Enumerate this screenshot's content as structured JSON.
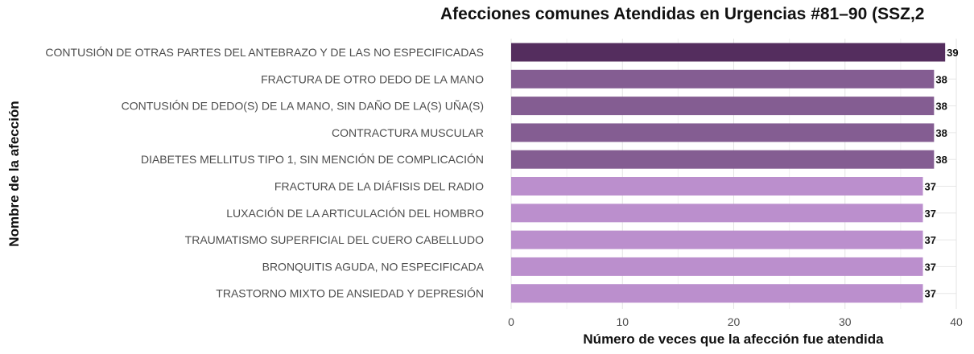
{
  "chart_data": {
    "type": "bar",
    "orientation": "horizontal",
    "title": "Afecciones comunes Atendidas en Urgencias #81–90 (SSZ,2",
    "xlabel": "Número de veces que la afección fue atendida",
    "ylabel": "Nombre de la afección",
    "xlim": [
      0,
      40
    ],
    "xticks": [
      0,
      10,
      20,
      30,
      40
    ],
    "grid": true,
    "categories": [
      "CONTUSIÓN DE OTRAS PARTES DEL ANTEBRAZO Y DE LAS NO ESPECIFICADAS",
      "FRACTURA DE OTRO DEDO DE LA MANO",
      "CONTUSIÓN DE DEDO(S) DE LA MANO, SIN DAÑO DE LA(S) UÑA(S)",
      "CONTRACTURA MUSCULAR",
      "DIABETES MELLITUS TIPO 1, SIN MENCIÓN DE COMPLICACIÓN",
      "FRACTURA DE LA DIÁFISIS DEL RADIO",
      "LUXACIÓN DE LA ARTICULACIÓN DEL HOMBRO",
      "TRAUMATISMO SUPERFICIAL DEL CUERO CABELLUDO",
      "BRONQUITIS AGUDA, NO ESPECIFICADA",
      "TRASTORNO MIXTO DE ANSIEDAD Y DEPRESIÓN"
    ],
    "values": [
      39,
      38,
      38,
      38,
      38,
      37,
      37,
      37,
      37,
      37
    ],
    "colors": [
      "#542d5e",
      "#845d92",
      "#845d92",
      "#845d92",
      "#845d92",
      "#bb8fcd",
      "#bb8fcd",
      "#bb8fcd",
      "#bb8fcd",
      "#bb8fcd"
    ]
  }
}
